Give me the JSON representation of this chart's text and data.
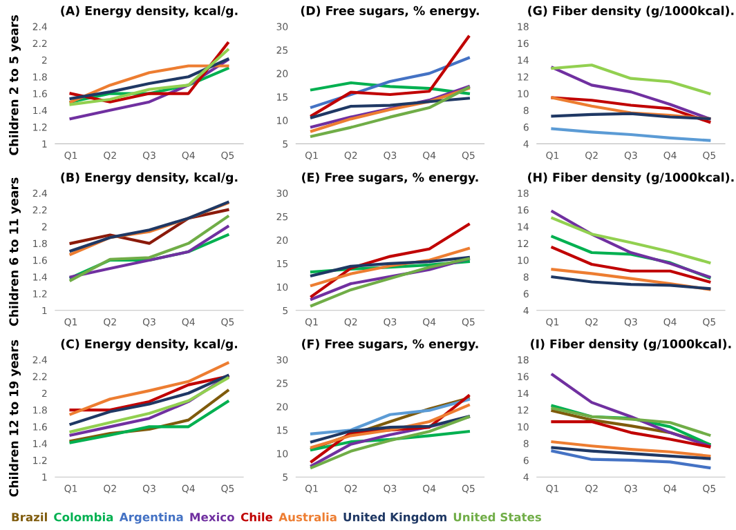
{
  "chart_data": [
    {
      "type": "line",
      "title": "(A) Energy density, kcal/g.",
      "ylabel": "Children 2 to 5 years",
      "categories": [
        "Q1",
        "Q2",
        "Q3",
        "Q4",
        "Q5"
      ],
      "ylim": [
        1,
        2.4
      ],
      "yticks": [
        1,
        {
          "value": 1.2,
          "label": "1.2"
        },
        {
          "value": 1.4,
          "label": "1.4"
        },
        {
          "value": 1.6,
          "label": "1.6"
        },
        {
          "value": 1.8,
          "label": "1.8"
        },
        2,
        {
          "value": 2.2,
          "label": "2.2"
        },
        {
          "value": 2.4,
          "label": "2.4"
        }
      ],
      "grid": false,
      "series": [
        {
          "color": "#00b050",
          "values": [
            1.5,
            1.6,
            1.6,
            1.7,
            1.9
          ]
        },
        {
          "color": "#7030a0",
          "values": [
            1.3,
            1.4,
            1.5,
            1.7,
            2.0
          ]
        },
        {
          "color": "#c00000",
          "values": [
            1.6,
            1.5,
            1.6,
            1.6,
            2.2
          ]
        },
        {
          "color": "#ed7d31",
          "values": [
            1.5,
            1.7,
            1.85,
            1.93,
            1.93
          ]
        },
        {
          "color": "#1f3864",
          "values": [
            1.54,
            1.62,
            1.72,
            1.8,
            2.01
          ]
        },
        {
          "color": "#92d050",
          "values": [
            1.47,
            1.53,
            1.65,
            1.7,
            2.12
          ]
        }
      ]
    },
    {
      "type": "line",
      "title": "(D) Free sugars, % energy.",
      "categories": [
        "Q1",
        "Q2",
        "Q3",
        "Q4",
        "Q5"
      ],
      "ylim": [
        5,
        30
      ],
      "yticks": [
        5,
        10,
        15,
        20,
        25,
        30
      ],
      "grid": false,
      "series": [
        {
          "color": "#00b050",
          "values": [
            16.5,
            18,
            17.2,
            16.8,
            15.7
          ]
        },
        {
          "color": "#4472c4",
          "values": [
            12.8,
            15.5,
            18.3,
            20,
            23.3
          ]
        },
        {
          "color": "#7030a0",
          "values": [
            8.6,
            10.7,
            12.5,
            14.3,
            17.2
          ]
        },
        {
          "color": "#c00000",
          "values": [
            11,
            16,
            15.5,
            16.2,
            27.8
          ]
        },
        {
          "color": "#ed7d31",
          "values": [
            7.7,
            10.3,
            12.3,
            14,
            16.8
          ]
        },
        {
          "color": "#1f3864",
          "values": [
            10.6,
            13,
            13.2,
            14,
            14.7
          ]
        },
        {
          "color": "#70ad47",
          "values": [
            6.6,
            8.5,
            10.7,
            12.7,
            17
          ]
        }
      ]
    },
    {
      "type": "line",
      "title": "(G) Fiber density (g/1000kcal).",
      "categories": [
        "Q1",
        "Q2",
        "Q3",
        "Q4",
        "Q5"
      ],
      "ylim": [
        4,
        18
      ],
      "yticks": [
        4,
        6,
        8,
        10,
        12,
        14,
        16,
        18
      ],
      "grid": false,
      "series": [
        {
          "color": "#5b9bd5",
          "values": [
            5.8,
            5.4,
            5.1,
            4.7,
            4.4
          ]
        },
        {
          "color": "#7030a0",
          "values": [
            13.1,
            11,
            10.2,
            8.7,
            7
          ]
        },
        {
          "color": "#c00000",
          "values": [
            9.5,
            9.2,
            8.6,
            8.2,
            6.6
          ]
        },
        {
          "color": "#ed7d31",
          "values": [
            9.5,
            8.5,
            7.7,
            7.4,
            7
          ]
        },
        {
          "color": "#1f3864",
          "values": [
            7.3,
            7.5,
            7.6,
            7.2,
            7
          ]
        },
        {
          "color": "#92d050",
          "values": [
            13,
            13.4,
            11.8,
            11.4,
            10
          ]
        }
      ]
    },
    {
      "type": "line",
      "title": "(B) Energy density, kcal/g.",
      "ylabel": "Children 6 to 11 years",
      "categories": [
        "Q1",
        "Q2",
        "Q3",
        "Q4",
        "Q5"
      ],
      "ylim": [
        1,
        2.4
      ],
      "yticks": [
        1,
        {
          "value": 1.2,
          "label": "1.2"
        },
        {
          "value": 1.4,
          "label": "1.4"
        },
        {
          "value": 1.6,
          "label": "1.6"
        },
        {
          "value": 1.8,
          "label": "1.8"
        },
        2,
        {
          "value": 2.2,
          "label": "2.2"
        },
        {
          "value": 2.4,
          "label": "2.4"
        }
      ],
      "grid": false,
      "series": [
        {
          "color": "#8b1a0a",
          "values": [
            1.8,
            1.9,
            1.8,
            2.1,
            2.2
          ]
        },
        {
          "color": "#00b050",
          "values": [
            1.39,
            1.6,
            1.6,
            1.7,
            1.9
          ]
        },
        {
          "color": "#7030a0",
          "values": [
            1.4,
            1.5,
            1.6,
            1.7,
            2.0
          ]
        },
        {
          "color": "#ed7d31",
          "values": [
            1.67,
            1.87,
            1.94,
            2.1,
            2.28
          ]
        },
        {
          "color": "#1f3864",
          "values": [
            1.71,
            1.87,
            1.96,
            2.1,
            2.29
          ]
        },
        {
          "color": "#70ad47",
          "values": [
            1.36,
            1.61,
            1.63,
            1.8,
            2.12
          ]
        }
      ]
    },
    {
      "type": "line",
      "title": "(E) Free sugars, % energy.",
      "categories": [
        "Q1",
        "Q2",
        "Q3",
        "Q4",
        "Q5"
      ],
      "ylim": [
        5,
        30
      ],
      "yticks": [
        5,
        10,
        15,
        20,
        25,
        30
      ],
      "grid": false,
      "series": [
        {
          "color": "#00b050",
          "values": [
            13.2,
            13.8,
            14.2,
            14.7,
            15.4
          ]
        },
        {
          "color": "#7030a0",
          "values": [
            7.4,
            10.7,
            12.2,
            13.7,
            16
          ]
        },
        {
          "color": "#c00000",
          "values": [
            8,
            14,
            16.5,
            18.1,
            23.3
          ]
        },
        {
          "color": "#ed7d31",
          "values": [
            10.3,
            12.8,
            14.5,
            15.7,
            18.2
          ]
        },
        {
          "color": "#1f3864",
          "values": [
            12.4,
            14.4,
            15,
            15.4,
            16.3
          ]
        },
        {
          "color": "#70ad47",
          "values": [
            6,
            9.4,
            11.8,
            14.2,
            16
          ]
        }
      ]
    },
    {
      "type": "line",
      "title": "(H) Fiber density (g/1000kcal).",
      "categories": [
        "Q1",
        "Q2",
        "Q3",
        "Q4",
        "Q5"
      ],
      "ylim": [
        4,
        18
      ],
      "yticks": [
        4,
        6,
        8,
        10,
        12,
        14,
        16,
        18
      ],
      "grid": false,
      "series": [
        {
          "color": "#00b050",
          "values": [
            12.8,
            10.9,
            10.7,
            9.7,
            7.9
          ]
        },
        {
          "color": "#7030a0",
          "values": [
            15.8,
            13.1,
            10.9,
            9.6,
            8
          ]
        },
        {
          "color": "#c00000",
          "values": [
            11.5,
            9.5,
            8.7,
            8.7,
            7.4
          ]
        },
        {
          "color": "#ed7d31",
          "values": [
            8.9,
            8.4,
            7.8,
            7.2,
            6.5
          ]
        },
        {
          "color": "#1f3864",
          "values": [
            8,
            7.4,
            7.1,
            7,
            6.6
          ]
        },
        {
          "color": "#92d050",
          "values": [
            15,
            13.1,
            12.1,
            11,
            9.7
          ]
        }
      ]
    },
    {
      "type": "line",
      "title": "(C) Energy density, kcal/g.",
      "ylabel": "Children 12 to 19 years",
      "categories": [
        "Q1",
        "Q2",
        "Q3",
        "Q4",
        "Q5"
      ],
      "ylim": [
        1,
        2.4
      ],
      "yticks": [
        1,
        {
          "value": 1.2,
          "label": "1.2"
        },
        {
          "value": 1.4,
          "label": "1.4"
        },
        {
          "value": 1.6,
          "label": "1.6"
        },
        {
          "value": 1.8,
          "label": "1.8"
        },
        2,
        {
          "value": 2.2,
          "label": "2.2"
        },
        {
          "value": 2.4,
          "label": "2.4"
        }
      ],
      "grid": false,
      "series": [
        {
          "color": "#7f5b0c",
          "values": [
            1.43,
            1.52,
            1.57,
            1.68,
            2.03
          ]
        },
        {
          "color": "#00b050",
          "values": [
            1.41,
            1.5,
            1.6,
            1.6,
            1.9
          ]
        },
        {
          "color": "#7030a0",
          "values": [
            1.5,
            1.6,
            1.7,
            1.9,
            2.2
          ]
        },
        {
          "color": "#c00000",
          "values": [
            1.8,
            1.8,
            1.9,
            2.1,
            2.2
          ]
        },
        {
          "color": "#ed7d31",
          "values": [
            1.75,
            1.93,
            2.03,
            2.14,
            2.36
          ]
        },
        {
          "color": "#1f3864",
          "values": [
            1.63,
            1.78,
            1.87,
            2.0,
            2.21
          ]
        },
        {
          "color": "#92d050",
          "values": [
            1.54,
            1.65,
            1.76,
            1.91,
            2.18
          ]
        }
      ]
    },
    {
      "type": "line",
      "title": "(F) Free sugars, % energy.",
      "categories": [
        "Q1",
        "Q2",
        "Q3",
        "Q4",
        "Q5"
      ],
      "ylim": [
        5,
        30
      ],
      "yticks": [
        5,
        10,
        15,
        20,
        25,
        30
      ],
      "grid": false,
      "series": [
        {
          "color": "#7f5b0c",
          "values": [
            11,
            14,
            16.8,
            19.5,
            21.8
          ]
        },
        {
          "color": "#00b050",
          "values": [
            10.8,
            12.5,
            13,
            13.8,
            14.7
          ]
        },
        {
          "color": "#5b9bd5",
          "values": [
            14.2,
            15,
            18.3,
            19.2,
            21.5
          ]
        },
        {
          "color": "#7030a0",
          "values": [
            7.4,
            12,
            14,
            15.7,
            17.8
          ]
        },
        {
          "color": "#c00000",
          "values": [
            8.3,
            14.5,
            15,
            15.6,
            22.3
          ]
        },
        {
          "color": "#ed7d31",
          "values": [
            11.3,
            13.8,
            15,
            16.8,
            20.3
          ]
        },
        {
          "color": "#1f3864",
          "values": [
            12.5,
            14.8,
            15.6,
            15.8,
            17.9
          ]
        },
        {
          "color": "#70ad47",
          "values": [
            7,
            10.5,
            12.8,
            14.7,
            17.8
          ]
        }
      ]
    },
    {
      "type": "line",
      "title": "(I) Fiber density (g/1000kcal).",
      "categories": [
        "Q1",
        "Q2",
        "Q3",
        "Q4",
        "Q5"
      ],
      "ylim": [
        4,
        18
      ],
      "yticks": [
        4,
        6,
        8,
        10,
        12,
        14,
        16,
        18
      ],
      "grid": false,
      "series": [
        {
          "name": "Brazil",
          "color": "#7f5b0c",
          "values": [
            11.9,
            10.8,
            10.1,
            9.3,
            7.9
          ]
        },
        {
          "name": "Colombia",
          "color": "#00b050",
          "values": [
            12.5,
            11.2,
            11,
            10,
            7.9
          ]
        },
        {
          "name": "Argentina",
          "color": "#4472c4",
          "values": [
            7.1,
            6.1,
            6.0,
            5.8,
            5.1
          ]
        },
        {
          "name": "Mexico",
          "color": "#7030a0",
          "values": [
            16.2,
            12.9,
            11.2,
            9.3,
            7.7
          ]
        },
        {
          "name": "Chile",
          "color": "#c00000",
          "values": [
            10.6,
            10.6,
            9.3,
            8.5,
            7.6
          ]
        },
        {
          "name": "Australia",
          "color": "#ed7d31",
          "values": [
            8.2,
            7.7,
            7.3,
            7.0,
            6.5
          ]
        },
        {
          "name": "United Kingdom",
          "color": "#1f3864",
          "values": [
            7.5,
            7.1,
            6.8,
            6.5,
            6.2
          ]
        },
        {
          "name": "United States",
          "color": "#70ad47",
          "values": [
            12.2,
            11.2,
            10.9,
            10.5,
            9
          ]
        }
      ]
    }
  ]
}
